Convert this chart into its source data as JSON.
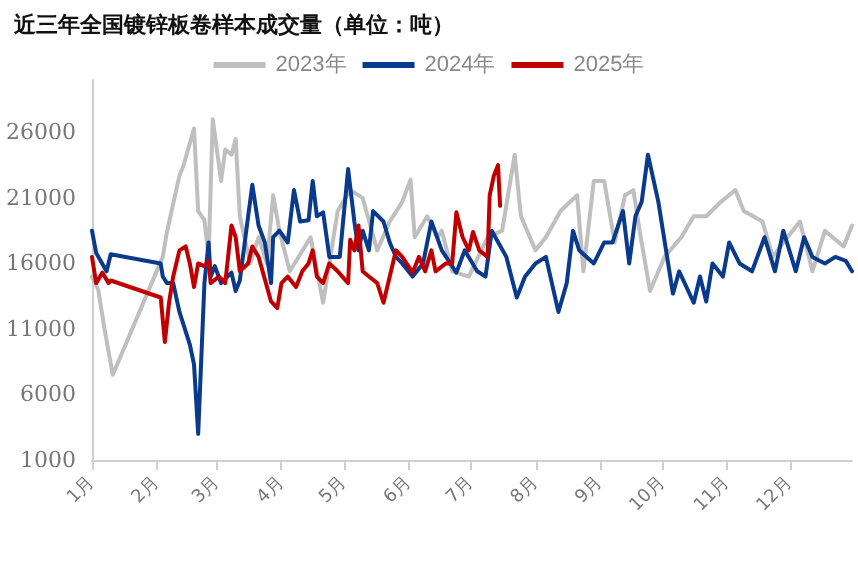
{
  "chart_data": {
    "type": "line",
    "title": "近三年全国镀锌板卷样本成交量（单位：吨）",
    "legend": "top",
    "grid": false,
    "marker": "none",
    "line_style": "solid",
    "xlim": [
      "--01-01",
      "--12-31"
    ],
    "xticks": [
      {
        "value": "--01-01",
        "label": "1月"
      },
      {
        "value": "--02-01",
        "label": "2月"
      },
      {
        "value": "--03-01",
        "label": "3月"
      },
      {
        "value": "--04-01",
        "label": "4月"
      },
      {
        "value": "--05-01",
        "label": "5月"
      },
      {
        "value": "--06-01",
        "label": "6月"
      },
      {
        "value": "--07-01",
        "label": "7月"
      },
      {
        "value": "--08-01",
        "label": "8月"
      },
      {
        "value": "--09-01",
        "label": "9月"
      },
      {
        "value": "--10-01",
        "label": "10月"
      },
      {
        "value": "--11-01",
        "label": "11月"
      },
      {
        "value": "--12-01",
        "label": "12月"
      }
    ],
    "ylim": [
      1000,
      30000
    ],
    "yticks": [
      1000,
      6000,
      11000,
      16000,
      21000,
      26000
    ],
    "series": [
      {
        "name": "2023年",
        "color": "#bfbfbf",
        "x": [
          "--01-01",
          "--01-04",
          "--01-07",
          "--01-11",
          "--02-04",
          "--02-06",
          "--02-12",
          "--02-14",
          "--02-19",
          "--02-21",
          "--02-24",
          "--02-26",
          "--02-28",
          "--03-03",
          "--03-05",
          "--03-08",
          "--03-10",
          "--03-12",
          "--03-17",
          "--03-21",
          "--03-25",
          "--03-28",
          "--03-31",
          "--04-05",
          "--04-15",
          "--04-21",
          "--04-28",
          "--05-04",
          "--05-10",
          "--05-17",
          "--05-23",
          "--05-29",
          "--06-02",
          "--06-04",
          "--06-10",
          "--06-15",
          "--06-17",
          "--06-22",
          "--06-30",
          "--07-09",
          "--07-16",
          "--07-22",
          "--07-25",
          "--08-01",
          "--08-06",
          "--08-13",
          "--08-21",
          "--08-24",
          "--08-29",
          "--09-03",
          "--09-08",
          "--09-13",
          "--09-17",
          "--09-20",
          "--09-25",
          "--10-02",
          "--10-10",
          "--10-16",
          "--10-22",
          "--10-29",
          "--11-05",
          "--11-09",
          "--11-18",
          "--11-23",
          "--11-28",
          "--12-06",
          "--12-12",
          "--12-18",
          "--12-27",
          "--12-31"
        ],
        "values": [
          15000,
          14000,
          11000,
          7500,
          16500,
          18400,
          22700,
          23500,
          26300,
          20000,
          19300,
          16500,
          27000,
          22300,
          24700,
          24300,
          25500,
          19600,
          16000,
          18000,
          16000,
          21200,
          18500,
          15400,
          18000,
          13000,
          20000,
          21600,
          21000,
          17000,
          19200,
          20700,
          22400,
          18000,
          19600,
          18000,
          18500,
          15400,
          15000,
          18000,
          18500,
          24300,
          19600,
          17000,
          18000,
          20000,
          21200,
          15400,
          22300,
          22300,
          17600,
          21200,
          21600,
          18500,
          13900,
          16500,
          18000,
          19600,
          19600,
          20700,
          21600,
          20000,
          19200,
          16500,
          17600,
          19200,
          15400,
          18500,
          17300,
          18900
        ]
      },
      {
        "name": "2024年",
        "color": "#0a3a8c",
        "x": [
          "--01-01",
          "--01-03",
          "--01-08",
          "--01-10",
          "--02-03",
          "--02-04",
          "--02-06",
          "--02-09",
          "--02-12",
          "--02-17",
          "--02-19",
          "--02-21",
          "--02-24",
          "--02-26",
          "--02-27",
          "--02-29",
          "--03-03",
          "--03-08",
          "--03-10",
          "--03-12",
          "--03-16",
          "--03-18",
          "--03-21",
          "--03-24",
          "--03-27",
          "--03-28",
          "--03-31",
          "--04-04",
          "--04-07",
          "--04-10",
          "--04-14",
          "--04-16",
          "--04-18",
          "--04-21",
          "--04-24",
          "--04-29",
          "--05-03",
          "--05-06",
          "--05-08",
          "--05-10",
          "--05-13",
          "--05-15",
          "--05-20",
          "--05-23",
          "--05-26",
          "--05-29",
          "--06-03",
          "--06-08",
          "--06-12",
          "--06-17",
          "--06-24",
          "--06-28",
          "--07-04",
          "--07-08",
          "--07-11",
          "--07-18",
          "--07-23",
          "--07-27",
          "--08-01",
          "--08-06",
          "--08-12",
          "--08-16",
          "--08-19",
          "--08-22",
          "--08-29",
          "--09-03",
          "--09-07",
          "--09-12",
          "--09-15",
          "--09-18",
          "--09-21",
          "--09-24",
          "--09-29",
          "--10-06",
          "--10-09",
          "--10-16",
          "--10-19",
          "--10-22",
          "--10-25",
          "--10-30",
          "--11-02",
          "--11-07",
          "--11-13",
          "--11-19",
          "--11-24",
          "--11-28",
          "--12-04",
          "--12-08",
          "--12-12",
          "--12-18",
          "--12-23",
          "--12-28",
          "--12-31"
        ],
        "values": [
          18500,
          16800,
          15400,
          16700,
          16000,
          15000,
          14500,
          14500,
          12300,
          9800,
          8300,
          3000,
          14500,
          17600,
          15000,
          15800,
          14500,
          15300,
          13900,
          14700,
          19600,
          22000,
          18900,
          17600,
          14500,
          18000,
          18500,
          17600,
          21600,
          19200,
          19300,
          22300,
          19600,
          19900,
          16500,
          16500,
          23200,
          19200,
          17000,
          18500,
          17000,
          20000,
          19200,
          17600,
          16500,
          16000,
          15000,
          16000,
          19200,
          17000,
          15300,
          17000,
          15400,
          15000,
          18500,
          16500,
          13400,
          15000,
          16000,
          16500,
          12300,
          14500,
          18500,
          17000,
          16000,
          17600,
          17600,
          20000,
          16000,
          19600,
          20700,
          24300,
          20700,
          13700,
          15400,
          13000,
          15000,
          13100,
          16000,
          15000,
          17600,
          16000,
          15400,
          18000,
          15400,
          18500,
          15400,
          18000,
          16500,
          16000,
          16500,
          16200,
          15400
        ]
      },
      {
        "name": "2025年",
        "color": "#c00000",
        "x": [
          "--01-01",
          "--01-03",
          "--01-06",
          "--01-09",
          "--01-10",
          "--02-03",
          "--02-05",
          "--02-07",
          "--02-09",
          "--02-12",
          "--02-15",
          "--02-17",
          "--02-19",
          "--02-21",
          "--02-24",
          "--02-26",
          "--02-27",
          "--03-02",
          "--03-05",
          "--03-08",
          "--03-10",
          "--03-12",
          "--03-16",
          "--03-18",
          "--03-21",
          "--03-27",
          "--03-30",
          "--04-01",
          "--04-04",
          "--04-08",
          "--04-11",
          "--04-14",
          "--04-16",
          "--04-18",
          "--04-21",
          "--04-24",
          "--04-28",
          "--05-03",
          "--05-04",
          "--05-06",
          "--05-08",
          "--05-10",
          "--05-13",
          "--05-17",
          "--05-20",
          "--05-23",
          "--05-26",
          "--05-29",
          "--06-03",
          "--06-06",
          "--06-09",
          "--06-12",
          "--06-14",
          "--06-19",
          "--06-22",
          "--06-24",
          "--06-27",
          "--06-30",
          "--07-02",
          "--07-05",
          "--07-09",
          "--07-10",
          "--07-12",
          "--07-14",
          "--07-15"
        ],
        "values": [
          16500,
          14500,
          15300,
          14500,
          14700,
          13400,
          10000,
          13000,
          15000,
          17000,
          17300,
          16000,
          14200,
          16000,
          15800,
          16200,
          14500,
          15000,
          14500,
          18900,
          18000,
          15400,
          16000,
          17300,
          16500,
          13100,
          12600,
          14500,
          15000,
          14200,
          15400,
          16000,
          17000,
          15000,
          14500,
          16000,
          15400,
          14500,
          17800,
          17000,
          18900,
          15400,
          15000,
          14500,
          13000,
          15000,
          17000,
          16500,
          15300,
          16500,
          15400,
          17000,
          15400,
          16000,
          16000,
          19900,
          18000,
          17000,
          18400,
          17000,
          16500,
          21200,
          22700,
          23500,
          20400
        ]
      }
    ]
  }
}
